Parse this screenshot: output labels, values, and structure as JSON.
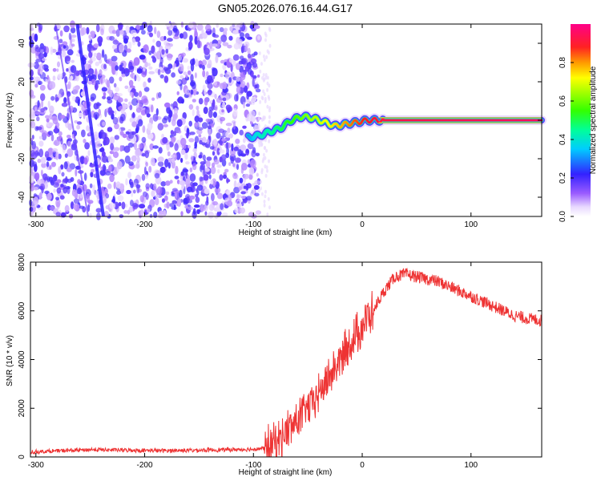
{
  "figure_title": "GN05.2026.076.16.44.G17",
  "chart_data": [
    {
      "type": "heatmap",
      "title": "GN05.2026.076.16.44.G17",
      "xlabel": "Height of straight line (km)",
      "ylabel": "Frequency (Hz)",
      "xlim": [
        -305,
        165
      ],
      "ylim": [
        -50,
        50
      ],
      "x_ticks": [
        -300,
        -200,
        -100,
        0,
        100
      ],
      "y_ticks": [
        -40,
        -20,
        0,
        20,
        40
      ],
      "colorbar": {
        "label": "Normalized spectral amplitude",
        "range": [
          0,
          1
        ],
        "ticks": [
          0.0,
          0.2,
          0.4,
          0.6,
          0.8
        ]
      },
      "noise_region": {
        "x_range": [
          -305,
          -95
        ],
        "amplitude_range": [
          0.05,
          0.2
        ]
      },
      "diagonal_streak": {
        "x_start": -262,
        "y_start": 50,
        "x_end": -238,
        "y_end": -50,
        "amplitude": 0.22
      },
      "signal_track": {
        "x": [
          -105,
          -95,
          -85,
          -75,
          -65,
          -55,
          -45,
          -35,
          -25,
          -15,
          -5,
          5,
          15,
          165
        ],
        "y": [
          -9,
          -8,
          -6,
          -4,
          0,
          2,
          1,
          -1,
          -3,
          -2,
          -1,
          0,
          0,
          0
        ],
        "amplitude": [
          0.3,
          0.4,
          0.45,
          0.5,
          0.55,
          0.6,
          0.65,
          0.7,
          0.75,
          0.8,
          0.85,
          0.9,
          0.92,
          0.95
        ]
      }
    },
    {
      "type": "line",
      "xlabel": "Height of straight line (km)",
      "ylabel": "SNR (10 * v/v)",
      "xlim": [
        -305,
        165
      ],
      "ylim": [
        0,
        8000
      ],
      "x_ticks": [
        -300,
        -200,
        -100,
        0,
        100
      ],
      "y_ticks": [
        0,
        2000,
        4000,
        6000,
        8000
      ],
      "series": [
        {
          "name": "SNR",
          "color": "#ee3333",
          "x": [
            -305,
            -280,
            -250,
            -220,
            -180,
            -150,
            -120,
            -100,
            -90,
            -80,
            -70,
            -60,
            -50,
            -40,
            -30,
            -20,
            -10,
            0,
            10,
            20,
            30,
            40,
            50,
            60,
            70,
            80,
            90,
            100,
            110,
            120,
            130,
            140,
            150,
            165
          ],
          "y": [
            200,
            250,
            300,
            280,
            260,
            280,
            300,
            320,
            360,
            600,
            1000,
            1500,
            2000,
            2600,
            3300,
            4000,
            4700,
            5400,
            6000,
            6800,
            7400,
            7500,
            7400,
            7300,
            7200,
            7000,
            6800,
            6600,
            6400,
            6200,
            6000,
            5800,
            5700,
            5600
          ]
        }
      ]
    }
  ],
  "colors": {
    "signal_line": "#ee3333",
    "track_core": "#ff2222",
    "frame": "#000000"
  }
}
